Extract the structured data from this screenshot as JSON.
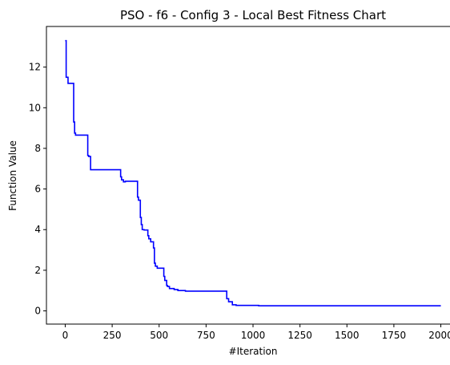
{
  "chart_data": {
    "type": "line",
    "title": "PSO - f6 - Config 3 - Local Best Fitness Chart",
    "xlabel": "#Iteration",
    "ylabel": "Function Value",
    "xlim": [
      -100,
      2100
    ],
    "ylim": [
      -0.65,
      14.0
    ],
    "xticks": [
      0,
      250,
      500,
      750,
      1000,
      1250,
      1500,
      1750,
      2000
    ],
    "yticks": [
      0,
      2,
      4,
      6,
      8,
      10,
      12
    ],
    "grid": false,
    "legend": "none",
    "series": [
      {
        "color": "#0000ff",
        "x": [
          0,
          5,
          5,
          15,
          15,
          45,
          45,
          50,
          50,
          55,
          55,
          120,
          120,
          125,
          125,
          135,
          135,
          295,
          295,
          300,
          300,
          310,
          310,
          320,
          320,
          385,
          385,
          390,
          390,
          400,
          400,
          405,
          405,
          410,
          410,
          420,
          420,
          440,
          440,
          445,
          445,
          455,
          455,
          470,
          470,
          475,
          475,
          480,
          480,
          490,
          490,
          510,
          510,
          525,
          525,
          530,
          530,
          540,
          540,
          545,
          545,
          555,
          555,
          580,
          580,
          600,
          600,
          640,
          640,
          700,
          700,
          860,
          860,
          870,
          870,
          890,
          890,
          910,
          910,
          1030,
          1030,
          2000
        ],
        "y": [
          13.3,
          13.3,
          11.5,
          11.5,
          11.2,
          11.2,
          9.3,
          9.3,
          8.75,
          8.75,
          8.65,
          8.65,
          7.65,
          7.65,
          7.6,
          7.6,
          6.95,
          6.95,
          6.6,
          6.6,
          6.45,
          6.45,
          6.35,
          6.35,
          6.38,
          6.38,
          5.6,
          5.6,
          5.45,
          5.45,
          4.6,
          4.6,
          4.25,
          4.25,
          4.0,
          4.0,
          3.98,
          3.98,
          3.7,
          3.7,
          3.55,
          3.55,
          3.4,
          3.4,
          3.1,
          3.1,
          2.35,
          2.35,
          2.2,
          2.2,
          2.1,
          2.1,
          2.1,
          2.1,
          1.7,
          1.7,
          1.5,
          1.5,
          1.25,
          1.25,
          1.2,
          1.2,
          1.1,
          1.1,
          1.05,
          1.05,
          1.0,
          1.0,
          0.97,
          0.97,
          0.97,
          0.97,
          0.6,
          0.6,
          0.45,
          0.45,
          0.3,
          0.3,
          0.27,
          0.27,
          0.25,
          0.25
        ]
      }
    ]
  }
}
